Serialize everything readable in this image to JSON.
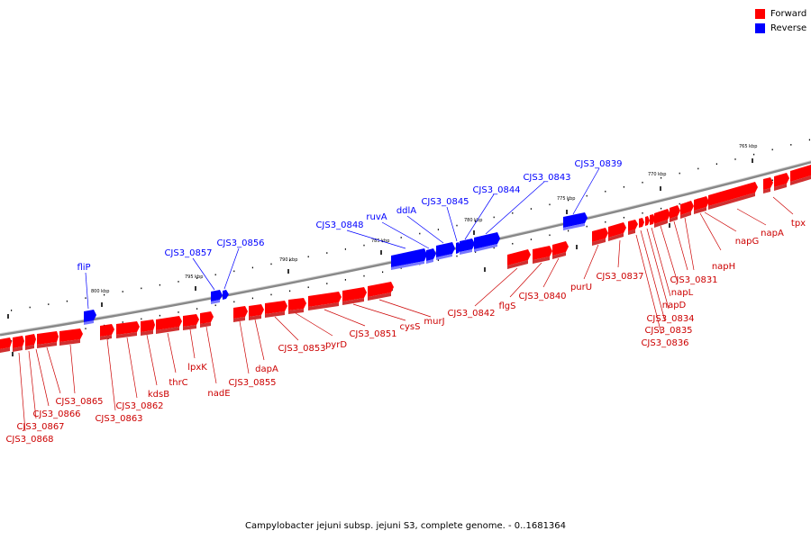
{
  "legend": {
    "items": [
      {
        "label": "Forward",
        "color": "#ff0000"
      },
      {
        "label": "Reverse",
        "color": "#0000ff"
      }
    ]
  },
  "caption": "Campylobacter jejuni subsp. jejuni S3, complete genome. - 0..1681364",
  "colors": {
    "forward": "#ff0000",
    "forward_shadow": "#d03030",
    "reverse": "#0000ff",
    "reverse_shadow": "#7777ff",
    "backbone": "#888888",
    "tick": "#000000"
  },
  "scale": {
    "unit": "kbp",
    "labels": [
      {
        "text": "765 kbp",
        "kbp": 765
      },
      {
        "text": "770 kbp",
        "kbp": 770
      },
      {
        "text": "775 kbp",
        "kbp": 775
      },
      {
        "text": "780 kbp",
        "kbp": 780
      },
      {
        "text": "785 kbp",
        "kbp": 785
      },
      {
        "text": "790 kbp",
        "kbp": 790
      },
      {
        "text": "795 kbp",
        "kbp": 795
      },
      {
        "text": "800 kbp",
        "kbp": 800
      }
    ]
  },
  "genes": {
    "reverse": [
      "fliP",
      "CJS3_0857",
      "CJS3_0856",
      "CJS3_0848",
      "ruvA",
      "ddlA",
      "CJS3_0845",
      "CJS3_0844",
      "CJS3_0843",
      "CJS3_0839"
    ],
    "forward": [
      "CJS3_0868",
      "CJS3_0867",
      "CJS3_0866",
      "CJS3_0865",
      "CJS3_0863",
      "CJS3_0862",
      "kdsB",
      "thrC",
      "lpxK",
      "nadE",
      "CJS3_0855",
      "dapA",
      "CJS3_0853",
      "pyrD",
      "CJS3_0851",
      "cysS",
      "murJ",
      "CJS3_0842",
      "flgS",
      "CJS3_0840",
      "purU",
      "CJS3_0837",
      "CJS3_0836",
      "CJS3_0835",
      "CJS3_0834",
      "napD",
      "napL",
      "CJS3_0831",
      "napH",
      "napG",
      "napA",
      "tpx"
    ]
  }
}
